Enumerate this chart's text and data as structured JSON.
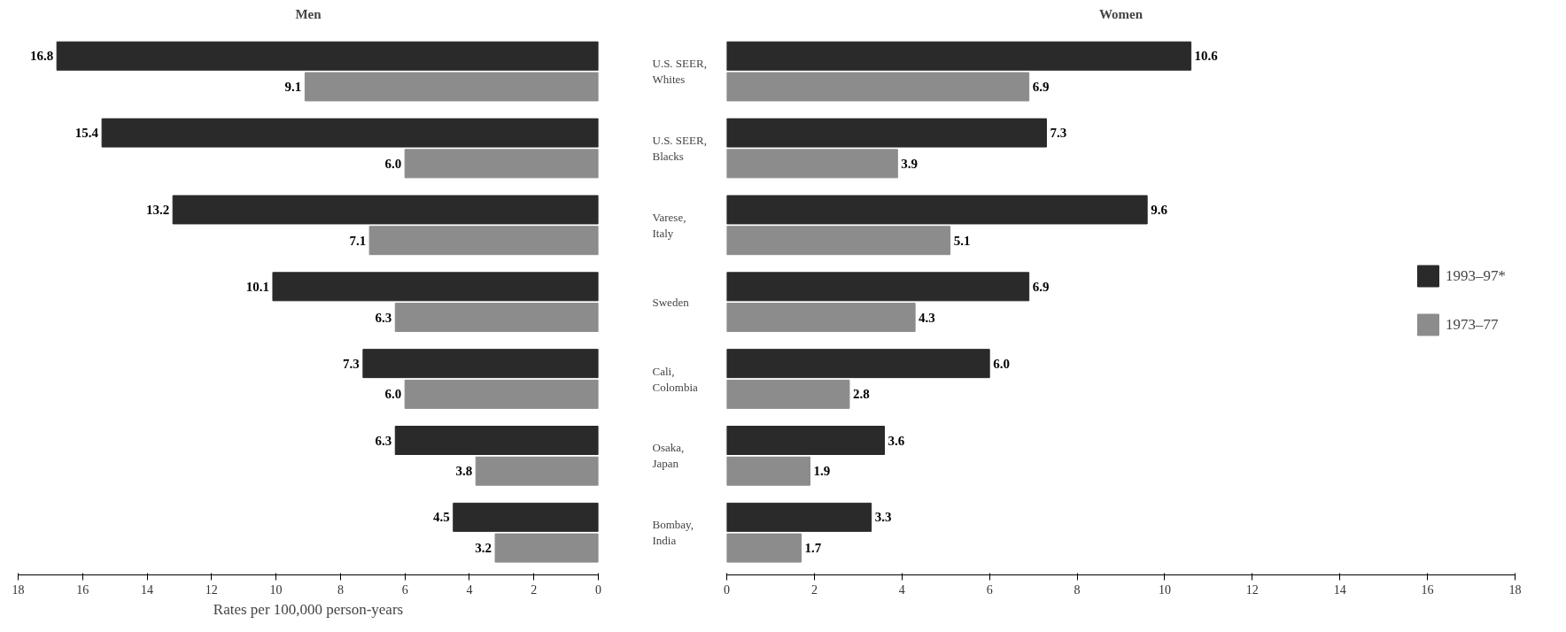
{
  "chart_data": [
    {
      "type": "bar",
      "orientation": "horizontal",
      "title": "Men",
      "xlabel": "Rates per 100,000 person-years",
      "categories": [
        "U.S. SEER, Whites",
        "U.S. SEER, Blacks",
        "Varese, Italy",
        "Sweden",
        "Cali, Colombia",
        "Osaka, Japan",
        "Bombay, India"
      ],
      "xlim": [
        18,
        0
      ],
      "xticks": [
        0,
        2,
        4,
        6,
        8,
        10,
        12,
        14,
        16,
        18
      ],
      "grid": false,
      "legend": false,
      "series": [
        {
          "color": "#2a2a2a",
          "values": [
            16.8,
            15.4,
            13.2,
            10.1,
            7.3,
            6.3,
            4.5
          ],
          "value_labels": [
            "16.8",
            "15.4",
            "13.2",
            "10.1",
            "7.3",
            "6.3",
            "4.5"
          ]
        },
        {
          "color": "#8c8c8c",
          "values": [
            9.1,
            6.0,
            7.1,
            6.3,
            6.0,
            3.8,
            3.2
          ],
          "value_labels": [
            "9.1",
            "6.0",
            "7.1",
            "6.3",
            "6.0",
            "3.8",
            "3.2"
          ]
        }
      ]
    },
    {
      "type": "bar",
      "orientation": "horizontal",
      "title": "Women",
      "categories": [
        null,
        null,
        null,
        null,
        null,
        null,
        null
      ],
      "xlim": [
        0,
        18
      ],
      "xticks": [
        0,
        2,
        4,
        6,
        8,
        10,
        12,
        14,
        16,
        18
      ],
      "grid": false,
      "legend": "right",
      "tick_labels": "x",
      "series": [
        {
          "name": "1993–97*",
          "color": "#2a2a2a",
          "values": [
            10.6,
            7.3,
            9.6,
            6.9,
            6.0,
            3.6,
            3.3
          ],
          "value_labels": [
            "10.6",
            "7.3",
            "9.6",
            "6.9",
            "6.0",
            "3.6",
            "3.3"
          ]
        },
        {
          "name": "1973–77",
          "color": "#8c8c8c",
          "values": [
            6.9,
            3.9,
            5.1,
            4.3,
            2.8,
            1.9,
            1.7
          ],
          "value_labels": [
            "6.9",
            "3.9",
            "5.1",
            "4.3",
            "2.8",
            "1.9",
            "1.7"
          ]
        }
      ]
    }
  ]
}
